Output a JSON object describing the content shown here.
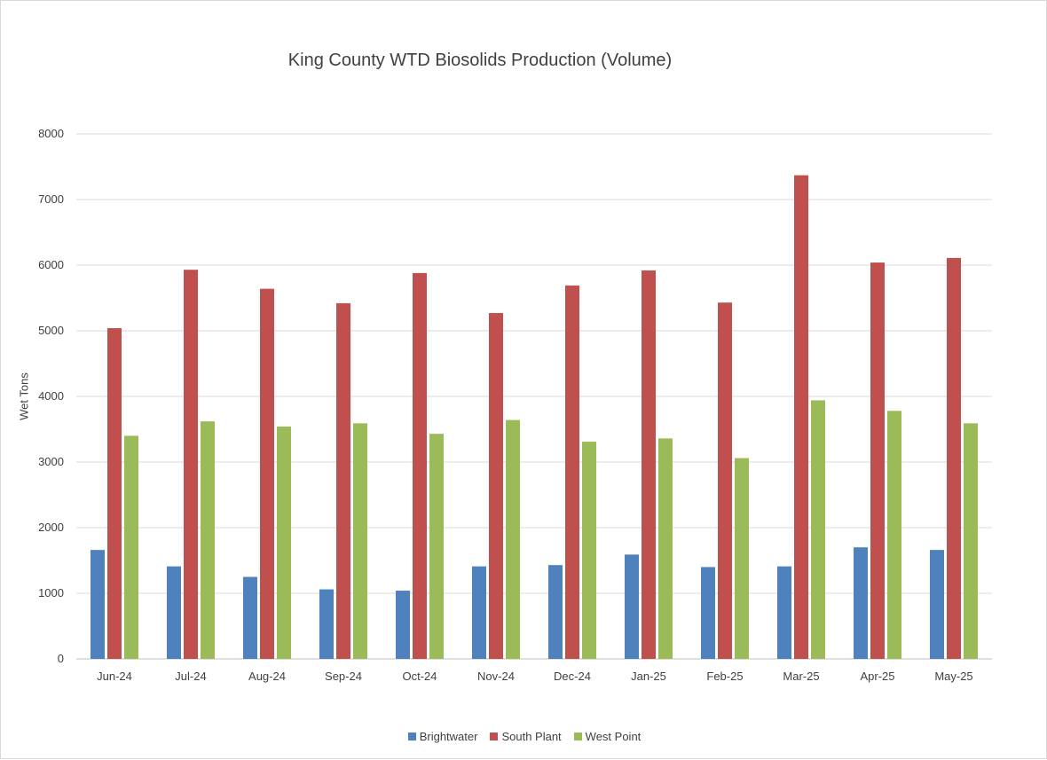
{
  "chart_data": {
    "type": "bar",
    "title": "King County WTD Biosolids Production (Volume)",
    "xlabel": "",
    "ylabel": "Wet Tons",
    "ylim": [
      0,
      8000
    ],
    "yticks": [
      "0",
      "1000",
      "2000",
      "3000",
      "4000",
      "5000",
      "6000",
      "7000",
      "8000"
    ],
    "grid": true,
    "legend_position": "bottom",
    "categories": [
      "Jun-24",
      "Jul-24",
      "Aug-24",
      "Sep-24",
      "Oct-24",
      "Nov-24",
      "Dec-24",
      "Jan-25",
      "Feb-25",
      "Mar-25",
      "Apr-25",
      "May-25"
    ],
    "series": [
      {
        "name": "Brightwater",
        "color": "#4f81bd",
        "values": [
          1660,
          1410,
          1250,
          1060,
          1040,
          1410,
          1430,
          1590,
          1400,
          1410,
          1700,
          1660
        ]
      },
      {
        "name": "South Plant",
        "color": "#c0504d",
        "values": [
          5040,
          5930,
          5640,
          5420,
          5880,
          5270,
          5690,
          5920,
          5430,
          7370,
          6040,
          6110
        ]
      },
      {
        "name": "West Point",
        "color": "#9bbb59",
        "values": [
          3400,
          3620,
          3540,
          3590,
          3430,
          3640,
          3310,
          3360,
          3060,
          3940,
          3780,
          3590
        ]
      }
    ]
  }
}
